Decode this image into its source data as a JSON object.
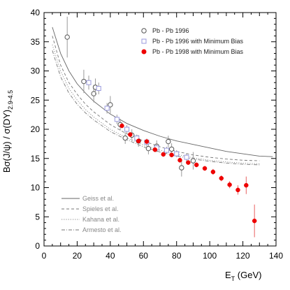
{
  "chart_data": {
    "type": "scatter",
    "xlabel": {
      "main": "E",
      "sub": "T",
      "unit": " (GeV)"
    },
    "ylabel": {
      "main": "Bσ(J/ψ) / σ(DY)",
      "sub": "2.9-4.5"
    },
    "xlim": [
      0,
      140
    ],
    "ylim": [
      0,
      40
    ],
    "xticks": [
      0,
      20,
      40,
      60,
      80,
      100,
      120,
      140
    ],
    "yticks": [
      0,
      5,
      10,
      15,
      20,
      25,
      30,
      35,
      40
    ],
    "grid": false,
    "legend_position": "top-right",
    "series": [
      {
        "name": "Pb - Pb 1996",
        "marker": "open-circle",
        "color": "#555555",
        "x": [
          14,
          24,
          30,
          31,
          40,
          46,
          49,
          53,
          57,
          63,
          68,
          75,
          77,
          83,
          90
        ],
        "y": [
          35.8,
          28.2,
          26.1,
          27.2,
          24.2,
          20.8,
          18.5,
          19.0,
          18.0,
          16.7,
          17.1,
          17.9,
          16.6,
          13.4,
          14.6
        ],
        "err": [
          3.5,
          2.0,
          1.5,
          1.5,
          1.5,
          1.0,
          1.0,
          1.0,
          1.0,
          1.0,
          1.0,
          1.0,
          1.0,
          1.5,
          1.5
        ]
      },
      {
        "name": "Pb - Pb 1996 with Minimum Bias",
        "marker": "open-square",
        "color": "#9999dd",
        "x": [
          27,
          33,
          38,
          44,
          50,
          56,
          62,
          68,
          74,
          80,
          86
        ],
        "y": [
          28.0,
          27.0,
          23.6,
          21.7,
          20.0,
          18.5,
          17.8,
          16.8,
          16.4,
          15.8,
          15.2
        ],
        "err": [
          1.2,
          1.0,
          0.9,
          0.8,
          0.7,
          0.6,
          0.6,
          0.6,
          0.6,
          0.6,
          0.7
        ]
      },
      {
        "name": "Pb - Pb 1998 with Minimum Bias",
        "marker": "filled-circle",
        "color": "#ee0000",
        "x": [
          47,
          52,
          57,
          62,
          67,
          72,
          77,
          82,
          87,
          92,
          97,
          102,
          107,
          112,
          117,
          122,
          127
        ],
        "y": [
          20.6,
          19.1,
          18.0,
          17.9,
          16.5,
          15.7,
          15.6,
          14.7,
          14.3,
          13.9,
          13.3,
          12.7,
          11.6,
          10.5,
          9.6,
          10.4,
          4.3
        ],
        "err": [
          0.4,
          0.4,
          0.4,
          0.4,
          0.4,
          0.4,
          0.4,
          0.4,
          0.4,
          0.4,
          0.4,
          0.5,
          0.5,
          0.6,
          0.8,
          1.5,
          2.8
        ]
      }
    ],
    "curves": [
      {
        "name": "Geiss et al.",
        "style": "solid",
        "color": "#666666",
        "x": [
          5,
          10,
          15,
          20,
          25,
          30,
          40,
          50,
          60,
          70,
          80,
          90,
          100,
          110,
          120,
          130,
          138
        ],
        "y": [
          37.5,
          33.0,
          30.0,
          27.8,
          26.2,
          24.8,
          22.6,
          21.0,
          19.8,
          18.8,
          18.0,
          17.4,
          16.8,
          16.2,
          15.8,
          15.4,
          15.3
        ]
      },
      {
        "name": "Spieles et al.",
        "style": "dashed",
        "color": "#777777",
        "x": [
          5,
          10,
          15,
          20,
          25,
          30,
          40,
          50,
          60,
          70,
          80,
          90,
          100,
          110,
          120,
          130
        ],
        "y": [
          36.0,
          31.0,
          28.0,
          26.0,
          24.3,
          23.0,
          20.8,
          19.2,
          18.0,
          17.0,
          16.2,
          15.6,
          15.2,
          14.9,
          14.7,
          14.6
        ]
      },
      {
        "name": "Kahana et al.",
        "style": "dotted",
        "color": "#888888",
        "x": [
          5,
          10,
          15,
          20,
          25,
          30,
          40,
          50,
          60,
          70,
          80,
          90,
          100,
          110,
          120,
          130
        ],
        "y": [
          34.5,
          30.0,
          27.0,
          25.0,
          23.4,
          22.1,
          20.0,
          18.5,
          17.3,
          16.4,
          15.7,
          15.1,
          14.7,
          14.4,
          14.2,
          14.1
        ]
      },
      {
        "name": "Armesto et al.",
        "style": "dashdot",
        "color": "#777777",
        "x": [
          5,
          10,
          15,
          20,
          25,
          30,
          40,
          50,
          60,
          70,
          80,
          90,
          100,
          110,
          120,
          130
        ],
        "y": [
          33.5,
          29.0,
          26.2,
          24.3,
          22.8,
          21.6,
          19.6,
          18.2,
          17.0,
          16.1,
          15.4,
          14.9,
          14.5,
          14.2,
          14.0,
          13.9
        ]
      }
    ]
  }
}
